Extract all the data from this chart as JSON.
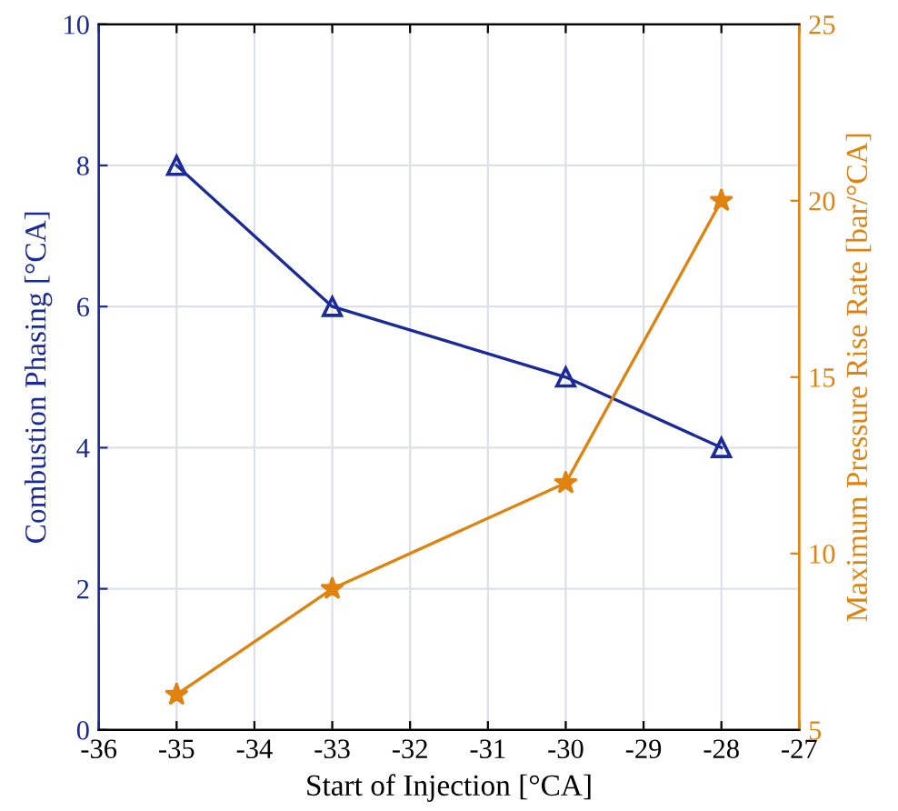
{
  "chart_data": {
    "type": "line",
    "xlabel": "Start of Injection [°CA]",
    "ylabel": "Combustion Phasing [°CA]",
    "y2label": "Maximum Pressure Rise Rate [bar/°CA]",
    "x": [
      -35,
      -33,
      -30,
      -28
    ],
    "series": [
      {
        "color": "#1a2a9a",
        "values": [
          8,
          6,
          5,
          4
        ],
        "marker": "triangle"
      },
      {
        "color": "#e0820e",
        "values": [
          6,
          9,
          12,
          20
        ],
        "marker": "star",
        "axis": "y2"
      }
    ],
    "xlim": [
      -36,
      -27
    ],
    "xticks": [
      -36,
      -35,
      -34,
      -33,
      -32,
      -31,
      -30,
      -29,
      -28,
      -27
    ],
    "ylim": [
      0,
      10
    ],
    "yticks": [
      0,
      2,
      4,
      6,
      8,
      10
    ],
    "y2lim": [
      5,
      25
    ],
    "y2ticks": [
      5,
      10,
      15,
      20,
      25
    ],
    "grid": true,
    "line_style": "solid"
  }
}
